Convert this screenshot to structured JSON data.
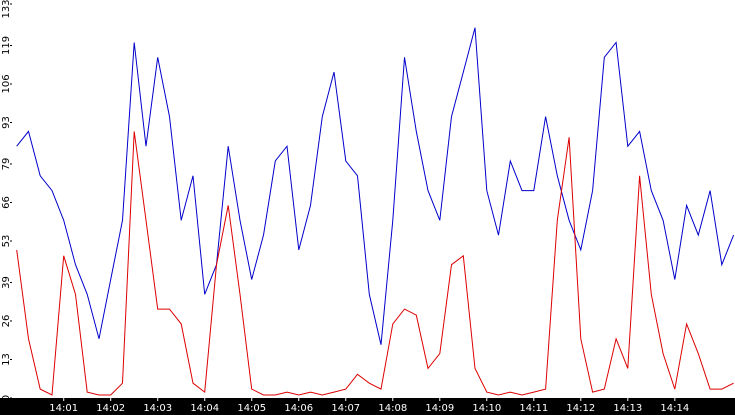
{
  "chart_data": {
    "type": "line",
    "x": [
      0,
      0.25,
      0.5,
      0.75,
      1,
      1.25,
      1.5,
      1.75,
      2,
      2.25,
      2.5,
      2.75,
      3,
      3.25,
      3.5,
      3.75,
      4,
      4.25,
      4.5,
      4.75,
      5,
      5.25,
      5.5,
      5.75,
      6,
      6.25,
      6.5,
      6.75,
      7,
      7.25,
      7.5,
      7.75,
      8,
      8.25,
      8.5,
      8.75,
      9,
      9.25,
      9.5,
      9.75,
      10,
      10.25,
      10.5,
      10.75,
      11,
      11.25,
      11.5,
      11.75,
      12,
      12.25,
      12.5,
      12.75,
      13,
      13.25,
      13.5,
      13.75,
      14,
      14.25,
      14.5,
      14.75,
      15,
      15.25
    ],
    "series": [
      {
        "color": "#0000cc",
        "values": [
          85,
          90,
          75,
          70,
          60,
          45,
          35,
          20,
          40,
          60,
          120,
          85,
          115,
          95,
          60,
          75,
          35,
          45,
          85,
          60,
          40,
          55,
          80,
          85,
          50,
          65,
          95,
          110,
          80,
          75,
          35,
          18,
          60,
          115,
          90,
          70,
          60,
          95,
          110,
          125,
          70,
          55,
          80,
          70,
          70,
          95,
          75,
          60,
          50,
          70,
          115,
          120,
          85,
          90,
          70,
          60,
          40,
          65,
          55,
          70,
          45,
          55
        ]
      },
      {
        "color": "#dd0000",
        "values": [
          50,
          20,
          3,
          1,
          48,
          35,
          2,
          1,
          1,
          5,
          90,
          60,
          30,
          30,
          25,
          5,
          2,
          45,
          65,
          35,
          3,
          1,
          1,
          2,
          1,
          2,
          1,
          2,
          3,
          8,
          5,
          3,
          25,
          30,
          28,
          10,
          15,
          45,
          48,
          10,
          2,
          1,
          2,
          1,
          2,
          3,
          60,
          88,
          20,
          2,
          3,
          20,
          10,
          75,
          35,
          15,
          3,
          25,
          15,
          3,
          3,
          5
        ]
      }
    ],
    "xlim": [
      -0.1,
      15.28
    ],
    "xticks": [
      {
        "value": 1,
        "label": "14:01"
      },
      {
        "value": 2,
        "label": "14:02"
      },
      {
        "value": 3,
        "label": "14:03"
      },
      {
        "value": 4,
        "label": "14:04"
      },
      {
        "value": 5,
        "label": "14:05"
      },
      {
        "value": 6,
        "label": "14:06"
      },
      {
        "value": 7,
        "label": "14:07"
      },
      {
        "value": 8,
        "label": "14:08"
      },
      {
        "value": 9,
        "label": "14:09"
      },
      {
        "value": 10,
        "label": "14:10"
      },
      {
        "value": 11,
        "label": "14:11"
      },
      {
        "value": 12,
        "label": "14:12"
      },
      {
        "value": 13,
        "label": "14:13"
      },
      {
        "value": 14,
        "label": "14:14"
      }
    ],
    "ylim": [
      0,
      133
    ],
    "yticks": [
      0,
      13,
      26,
      39,
      53,
      66,
      79,
      93,
      106,
      119,
      133
    ]
  }
}
